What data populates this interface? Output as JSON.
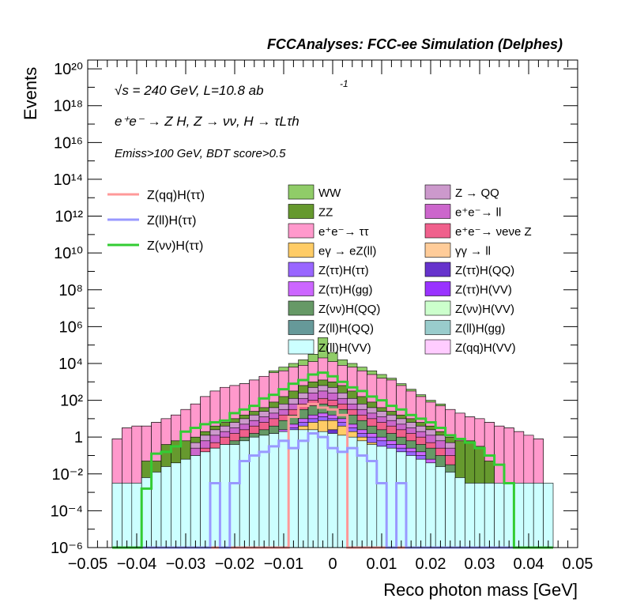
{
  "header": "FCCAnalyses: FCC-ee Simulation (Delphes)",
  "annotations": {
    "line1": "√s = 240 GeV, L=10.8 ab",
    "line1_sup": "-1",
    "line2": "e⁺e⁻ → Z H, Z → νν, H → τLτh",
    "line3": "Emiss>100 GeV, BDT score>0.5"
  },
  "chart_data": {
    "type": "histogram-stacked",
    "xlabel": "Reco photon mass [GeV]",
    "ylabel": "Events",
    "ylog": true,
    "xlim": [
      -0.05,
      0.05
    ],
    "ylim": [
      1e-06,
      3e+20
    ],
    "xticks": [
      "−0.05",
      "−0.04",
      "−0.03",
      "−0.02",
      "−0.01",
      "0",
      "0.01",
      "0.02",
      "0.03",
      "0.04",
      "0.05"
    ],
    "yticks": [
      "10⁻⁶",
      "10⁻⁴",
      "10⁻²",
      "1",
      "10²",
      "10⁴",
      "10⁶",
      "10⁸",
      "10¹⁰",
      "10¹²",
      "10¹⁴",
      "10¹⁶",
      "10¹⁸",
      "10²⁰"
    ],
    "bin_edges_start": -0.045,
    "bin_width": 0.002,
    "background_legend": [
      {
        "name": "WW",
        "color": "#90cc68"
      },
      {
        "name": "Z → QQ",
        "color": "#cc99cc"
      },
      {
        "name": "ZZ",
        "color": "#66992e"
      },
      {
        "name": "e⁺e⁻→ ll",
        "color": "#cc66cc"
      },
      {
        "name": "e⁺e⁻→ ττ",
        "color": "#ff99cc"
      },
      {
        "name": "e⁺e⁻→ νeνe Z",
        "color": "#f0608c"
      },
      {
        "name": "eγ → eZ(ll)",
        "color": "#ffcc66"
      },
      {
        "name": "γγ → ll",
        "color": "#ffcc99"
      },
      {
        "name": "Z(ττ)H(ττ)",
        "color": "#9966ff"
      },
      {
        "name": "Z(ττ)H(QQ)",
        "color": "#6633cc"
      },
      {
        "name": "Z(ττ)H(gg)",
        "color": "#cc66ff"
      },
      {
        "name": "Z(ττ)H(VV)",
        "color": "#9933ff"
      },
      {
        "name": "Z(νν)H(QQ)",
        "color": "#669966"
      },
      {
        "name": "Z(νν)H(VV)",
        "color": "#ccffcc"
      },
      {
        "name": "Z(ll)H(QQ)",
        "color": "#669999"
      },
      {
        "name": "Z(ll)H(gg)",
        "color": "#99cccc"
      },
      {
        "name": "Z(ll)H(VV)",
        "color": "#ccffff"
      },
      {
        "name": "Z(qq)H(VV)",
        "color": "#ffccff"
      }
    ],
    "signal_legend": [
      {
        "name": "Z(qq)H(ττ)",
        "color": "#ff9999"
      },
      {
        "name": "Z(ll)H(ττ)",
        "color": "#9999ff"
      },
      {
        "name": "Z(νν)H(ττ)",
        "color": "#33cc33"
      }
    ],
    "stack_order": [
      "Z(ll)H(VV)",
      "Z(ll)H(QQ)",
      "Z(ττ)H(VV)",
      "Z(ττ)H(QQ)",
      "eγ → eZ(ll)",
      "Z(ττ)H(ττ)",
      "Z(ττ)H(gg)",
      "Z(νν)H(QQ)",
      "e⁺e⁻→ νeνe Z",
      "e⁺e⁻→ ll",
      "Z → QQ",
      "ZZ",
      "e⁺e⁻→ ττ",
      "WW"
    ],
    "log10_stack_totals": [
      [
        -2.5,
        -2.5,
        -2.5,
        -2.2,
        -1.9,
        -1.6,
        -1.4,
        -1.2,
        -1.0,
        -0.8,
        -0.6,
        -0.4,
        -0.4,
        -0.2,
        0.0,
        0.1,
        0.2,
        0.3,
        0.4,
        0.4,
        0.4,
        0.3,
        0.2,
        0.1,
        0.0,
        -0.2,
        -0.4,
        -0.5,
        -0.6,
        -0.8,
        -1.0,
        -1.2,
        -1.4,
        -1.6,
        -1.9,
        -2.2,
        -2.5,
        -2.5,
        -2.5,
        -2.5,
        -2.5,
        -2.5,
        -2.5,
        -2.5,
        -2.5
      ],
      [
        -6.0,
        -6.0,
        -6.0,
        -6.0,
        -6.0,
        -6.0,
        -6.0,
        -6.0,
        -6.0,
        -6.0,
        -6.0,
        -6.0,
        -6.0,
        -6.0,
        -6.0,
        -6.0,
        -6.0,
        -6.0,
        -6.0,
        -6.0,
        -6.0,
        -6.0,
        -6.0,
        -6.0,
        -6.0,
        -6.0,
        -6.0,
        -6.0,
        -6.0,
        -6.0,
        -6.0,
        -6.0,
        -6.0,
        -6.0,
        -6.0,
        -6.0,
        -6.0,
        -6.0,
        -6.0,
        -6.0,
        -6.0,
        -6.0,
        -6.0,
        -6.0,
        -6.0
      ],
      [
        -6.0,
        -6.0,
        -6.0,
        -6.0,
        -6.0,
        -6.0,
        -6.0,
        -6.0,
        -6.0,
        -6.0,
        -6.0,
        -6.0,
        -6.0,
        -6.0,
        -6.0,
        -1.5,
        -1.0,
        -0.8,
        -0.6,
        -0.4,
        -0.6,
        -0.3,
        0.1,
        -0.4,
        -0.7,
        -1.2,
        -1.5,
        -6.0,
        -6.0,
        -6.0,
        -6.0,
        -6.0,
        -6.0,
        -6.0,
        -6.0,
        -6.0,
        -6.0,
        -6.0,
        -6.0,
        -6.0,
        -6.0,
        -6.0,
        -6.0,
        -6.0,
        -6.0
      ],
      [
        -6.0,
        -6.0,
        -6.0,
        -6.0,
        -6.0,
        -6.0,
        -6.0,
        -6.0,
        -6.0,
        -6.0,
        -6.0,
        -6.0,
        -6.0,
        -6.0,
        -6.0,
        -1.2,
        -0.8,
        -0.5,
        -0.2,
        0.0,
        -0.2,
        0.1,
        0.4,
        -0.1,
        -0.4,
        -0.8,
        -1.2,
        -6.0,
        -6.0,
        -6.0,
        -6.0,
        -6.0,
        -6.0,
        -6.0,
        -6.0,
        -6.0,
        -6.0,
        -6.0,
        -6.0,
        -6.0,
        -6.0,
        -6.0,
        -6.0,
        -6.0,
        -6.0
      ],
      [
        -6.0,
        -6.0,
        -6.0,
        -6.0,
        -6.0,
        -6.0,
        -6.0,
        -6.0,
        -6.0,
        -6.0,
        -6.0,
        -6.0,
        -6.0,
        -1.0,
        -1.0,
        -0.6,
        -0.3,
        0.0,
        0.3,
        0.6,
        0.8,
        0.9,
        0.9,
        0.6,
        0.3,
        0.0,
        -0.3,
        -0.6,
        -1.0,
        -1.0,
        -6.0,
        -6.0,
        -6.0,
        -6.0,
        -6.0,
        -6.0,
        -6.0,
        -6.0,
        -6.0,
        -6.0,
        -6.0,
        -6.0,
        -6.0,
        -6.0,
        -6.0
      ],
      [
        -6.0,
        -6.0,
        -6.0,
        -6.0,
        -6.0,
        -6.0,
        -6.0,
        -6.0,
        -6.0,
        -6.0,
        -1.5,
        -1.0,
        -0.8,
        -0.6,
        -0.4,
        -0.2,
        0.0,
        0.2,
        0.5,
        0.8,
        1.0,
        1.1,
        1.0,
        0.8,
        0.5,
        0.2,
        0.0,
        -0.2,
        -0.4,
        -0.6,
        -0.8,
        -1.0,
        -1.5,
        -6.0,
        -6.0,
        -6.0,
        -6.0,
        -6.0,
        -6.0,
        -6.0,
        -6.0,
        -6.0,
        -6.0,
        -6.0,
        -6.0
      ],
      [
        -6.0,
        -6.0,
        -6.0,
        -6.0,
        -6.0,
        -6.0,
        -6.0,
        -6.0,
        -6.0,
        -1.8,
        -1.2,
        -0.8,
        -0.6,
        -0.4,
        -0.2,
        0.0,
        0.2,
        0.4,
        0.7,
        1.0,
        1.2,
        1.3,
        1.2,
        1.0,
        0.7,
        0.4,
        0.2,
        0.0,
        -0.2,
        -0.4,
        -0.6,
        -0.8,
        -1.2,
        -1.8,
        -6.0,
        -6.0,
        -6.0,
        -6.0,
        -6.0,
        -6.0,
        -6.0,
        -6.0,
        -6.0,
        -6.0,
        -6.0
      ],
      [
        -6.0,
        -6.0,
        -6.0,
        -6.0,
        -6.0,
        -6.0,
        -6.0,
        -6.0,
        -1.5,
        -1.0,
        -0.6,
        -0.4,
        -0.2,
        0.0,
        0.2,
        0.4,
        0.6,
        0.9,
        1.2,
        1.5,
        1.7,
        1.8,
        1.7,
        1.5,
        1.2,
        0.9,
        0.6,
        0.4,
        0.2,
        0.0,
        -0.2,
        -0.4,
        -0.6,
        -1.0,
        -1.5,
        -6.0,
        -6.0,
        -6.0,
        -6.0,
        -6.0,
        -6.0,
        -6.0,
        -6.0,
        -6.0,
        -6.0
      ],
      [
        -6.0,
        -6.0,
        -6.0,
        -6.0,
        -6.0,
        -6.0,
        -6.0,
        -6.0,
        -1.0,
        -0.6,
        -0.3,
        0.0,
        0.2,
        0.4,
        0.6,
        0.8,
        1.0,
        1.2,
        1.5,
        1.8,
        2.0,
        2.1,
        2.0,
        1.8,
        1.5,
        1.2,
        1.0,
        0.8,
        0.6,
        0.4,
        0.2,
        0.0,
        -0.3,
        -0.6,
        -1.0,
        -6.0,
        -6.0,
        -6.0,
        -6.0,
        -6.0,
        -6.0,
        -6.0,
        -6.0,
        -6.0,
        -6.0
      ],
      [
        -6.0,
        -6.0,
        -6.0,
        -6.0,
        -6.0,
        -6.0,
        -6.0,
        -6.0,
        -0.6,
        -0.2,
        0.1,
        0.3,
        0.5,
        0.7,
        0.9,
        1.1,
        1.3,
        1.5,
        1.8,
        2.1,
        2.4,
        2.5,
        2.4,
        2.1,
        1.8,
        1.5,
        1.3,
        1.1,
        0.9,
        0.7,
        0.5,
        0.3,
        0.1,
        -0.2,
        -0.6,
        -6.0,
        -6.0,
        -6.0,
        -6.0,
        -6.0,
        -6.0,
        -6.0,
        -6.0,
        -6.0,
        -6.0
      ],
      [
        -6.0,
        -6.0,
        -6.0,
        -6.0,
        -6.0,
        -6.0,
        -6.0,
        -6.0,
        -0.3,
        0.1,
        0.4,
        0.6,
        0.8,
        1.0,
        1.2,
        1.4,
        1.6,
        1.8,
        2.1,
        2.4,
        2.7,
        2.8,
        2.7,
        2.4,
        2.1,
        1.8,
        1.6,
        1.4,
        1.2,
        1.0,
        0.8,
        0.6,
        0.4,
        0.1,
        -0.3,
        -6.0,
        -6.0,
        -6.0,
        -6.0,
        -6.0,
        -6.0,
        -6.0,
        -6.0,
        -6.0,
        -6.0
      ],
      [
        -6.0,
        -6.0,
        -6.0,
        -1.3,
        -1.3,
        -0.4,
        -0.2,
        -0.2,
        0.0,
        0.3,
        0.6,
        0.8,
        1.0,
        1.2,
        1.4,
        1.6,
        1.9,
        2.2,
        2.5,
        2.8,
        3.0,
        3.1,
        3.0,
        2.8,
        2.5,
        2.2,
        1.9,
        1.6,
        1.4,
        1.2,
        1.0,
        0.8,
        0.6,
        0.3,
        0.0,
        -0.2,
        -0.2,
        -0.5,
        -1.3,
        -6.0,
        -6.0,
        -6.0,
        -6.0,
        -6.0,
        -6.0
      ],
      [
        -0.1,
        0.5,
        0.6,
        0.6,
        0.8,
        1.0,
        1.2,
        1.5,
        1.8,
        2.2,
        2.5,
        2.7,
        2.8,
        2.9,
        3.1,
        3.3,
        3.5,
        3.6,
        3.8,
        3.9,
        4.1,
        4.3,
        4.1,
        3.9,
        3.8,
        3.6,
        3.4,
        3.2,
        3.1,
        2.8,
        2.5,
        2.2,
        1.9,
        1.7,
        1.5,
        1.3,
        1.1,
        1.0,
        0.8,
        0.6,
        0.5,
        0.3,
        0.1,
        -0.1,
        -6.0
      ],
      [
        -0.1,
        0.5,
        0.6,
        0.6,
        0.8,
        1.0,
        1.2,
        1.5,
        1.8,
        2.2,
        2.5,
        2.7,
        2.8,
        2.9,
        3.1,
        3.3,
        3.6,
        3.8,
        4.0,
        4.2,
        4.5,
        5.4,
        4.6,
        4.2,
        4.0,
        3.8,
        3.6,
        3.4,
        3.2,
        2.9,
        2.6,
        2.3,
        2.0,
        1.8,
        1.5,
        1.3,
        1.1,
        1.0,
        0.8,
        0.6,
        0.5,
        0.3,
        0.1,
        -0.1,
        -6.0
      ]
    ],
    "signal_log10": [
      [
        -6.0,
        -6.0,
        -6.0,
        -6.0,
        -6.0,
        -6.0,
        -6.0,
        -6.0,
        -6.0,
        -6.0,
        -6.0,
        -6.0,
        -6.0,
        -6.0,
        -6.0,
        -6.0,
        -6.0,
        -6.0,
        1.1,
        1.7,
        1.8,
        1.6,
        1.5,
        1.2,
        -6.0,
        -6.0,
        -6.0,
        -6.0,
        -6.0,
        -6.0,
        -6.0,
        -6.0,
        -6.0,
        -6.0,
        -6.0,
        -6.0,
        -6.0,
        -6.0,
        -6.0,
        -6.0,
        -6.0,
        -6.0,
        -6.0,
        -6.0,
        -6.0
      ],
      [
        -6.0,
        -6.0,
        -6.0,
        -6.0,
        -6.0,
        -6.0,
        -6.0,
        -6.0,
        -6.0,
        -6.0,
        -2.5,
        -6.0,
        -2.5,
        -1.3,
        -1.0,
        -0.8,
        -0.5,
        -0.2,
        -0.6,
        -0.2,
        0.2,
        0.0,
        -0.6,
        -0.8,
        -0.6,
        -1.0,
        -1.3,
        -2.5,
        -6.0,
        -2.5,
        -6.0,
        -6.0,
        -6.0,
        -6.0,
        -6.0,
        -6.0,
        -6.0,
        -6.0,
        -6.0,
        -6.0,
        -6.0,
        -6.0,
        -6.0,
        -6.0,
        -6.0
      ],
      [
        -6.0,
        -6.0,
        -6.0,
        -2.8,
        -0.9,
        -0.8,
        -0.5,
        0.3,
        0.5,
        0.7,
        0.8,
        0.9,
        1.3,
        1.5,
        1.7,
        2.1,
        2.3,
        2.6,
        2.9,
        3.1,
        3.4,
        3.5,
        3.3,
        3.0,
        2.7,
        2.5,
        2.2,
        2.0,
        1.7,
        1.5,
        1.2,
        1.0,
        0.8,
        0.5,
        0.1,
        -0.1,
        -0.3,
        -0.6,
        -1.0,
        -1.5,
        -2.5,
        -6.0,
        -6.0,
        -6.0,
        -6.0
      ]
    ]
  }
}
